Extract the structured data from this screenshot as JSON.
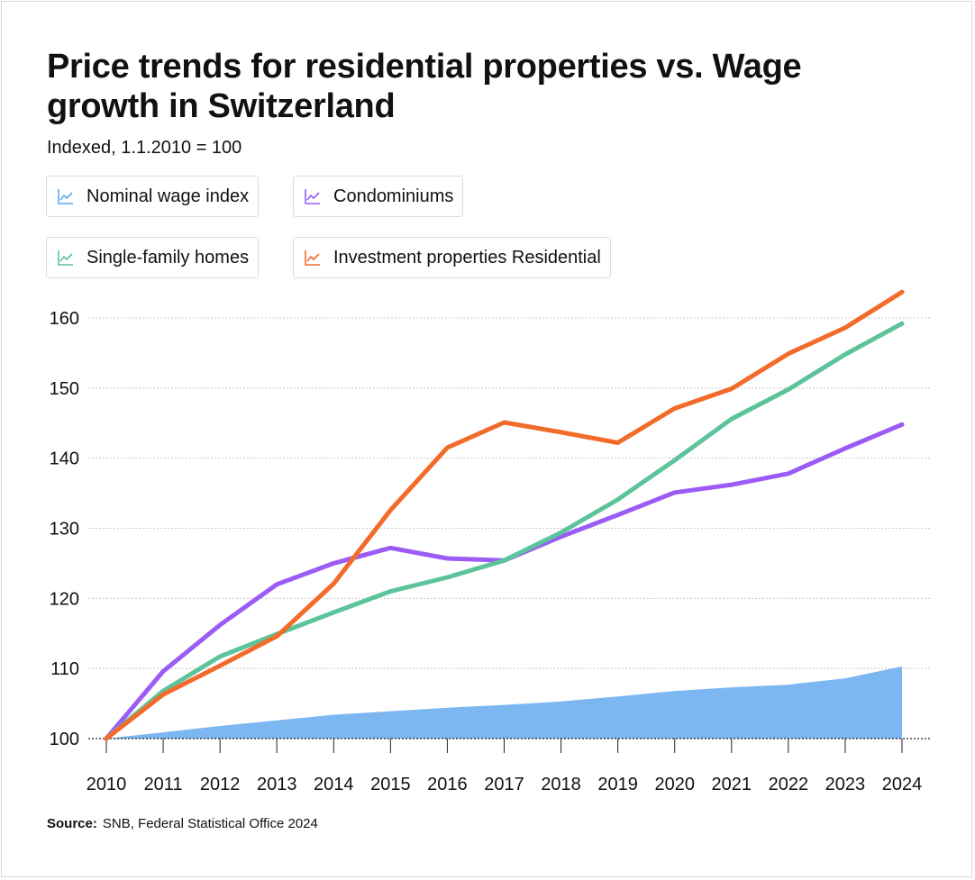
{
  "colors": {
    "wage": "#7cb7f2",
    "wage_icon": "#5fa9ee",
    "condo": "#9b5cf5",
    "sfh": "#5cc39a",
    "invest": "#f36b2a",
    "grid": "#c8c8c8",
    "axis": "#222222",
    "text": "#111111"
  },
  "source": {
    "label": "Source:",
    "text": "SNB, Federal Statistical Office 2024"
  },
  "chart_data": {
    "type": "line",
    "title": "Price trends for residential properties vs. Wage growth in Switzerland",
    "subtitle": "Indexed, 1.1.2010 = 100",
    "xlabel": "",
    "ylabel": "",
    "categories": [
      "2010",
      "2011",
      "2012",
      "2013",
      "2014",
      "2015",
      "2016",
      "2017",
      "2018",
      "2019",
      "2020",
      "2021",
      "2022",
      "2023",
      "2024"
    ],
    "yticks": [
      100,
      110,
      120,
      130,
      140,
      150,
      160
    ],
    "ylim": [
      100,
      164
    ],
    "grid": true,
    "legend_position": "top",
    "series": [
      {
        "name": "Nominal wage index",
        "key": "wage",
        "style": "area",
        "values": [
          100.0,
          100.9,
          101.8,
          102.6,
          103.4,
          103.9,
          104.4,
          104.8,
          105.3,
          106.0,
          106.8,
          107.3,
          107.7,
          108.6,
          110.3
        ]
      },
      {
        "name": "Condominiums",
        "key": "condo",
        "style": "line",
        "values": [
          100.0,
          109.6,
          116.2,
          122.0,
          125.0,
          127.2,
          125.7,
          125.4,
          128.8,
          131.9,
          135.1,
          136.2,
          137.8,
          141.4,
          144.8
        ]
      },
      {
        "name": "Single-family homes",
        "key": "sfh",
        "style": "line",
        "values": [
          100.0,
          106.8,
          111.7,
          114.9,
          118.0,
          121.0,
          123.0,
          125.4,
          129.4,
          134.1,
          139.7,
          145.6,
          149.8,
          154.8,
          159.2
        ]
      },
      {
        "name": "Investment properties Residential",
        "key": "invest",
        "style": "line",
        "values": [
          100.0,
          106.3,
          110.4,
          114.6,
          122.1,
          132.6,
          141.5,
          145.1,
          143.7,
          142.2,
          147.1,
          149.9,
          154.9,
          158.6,
          163.7
        ]
      }
    ]
  }
}
